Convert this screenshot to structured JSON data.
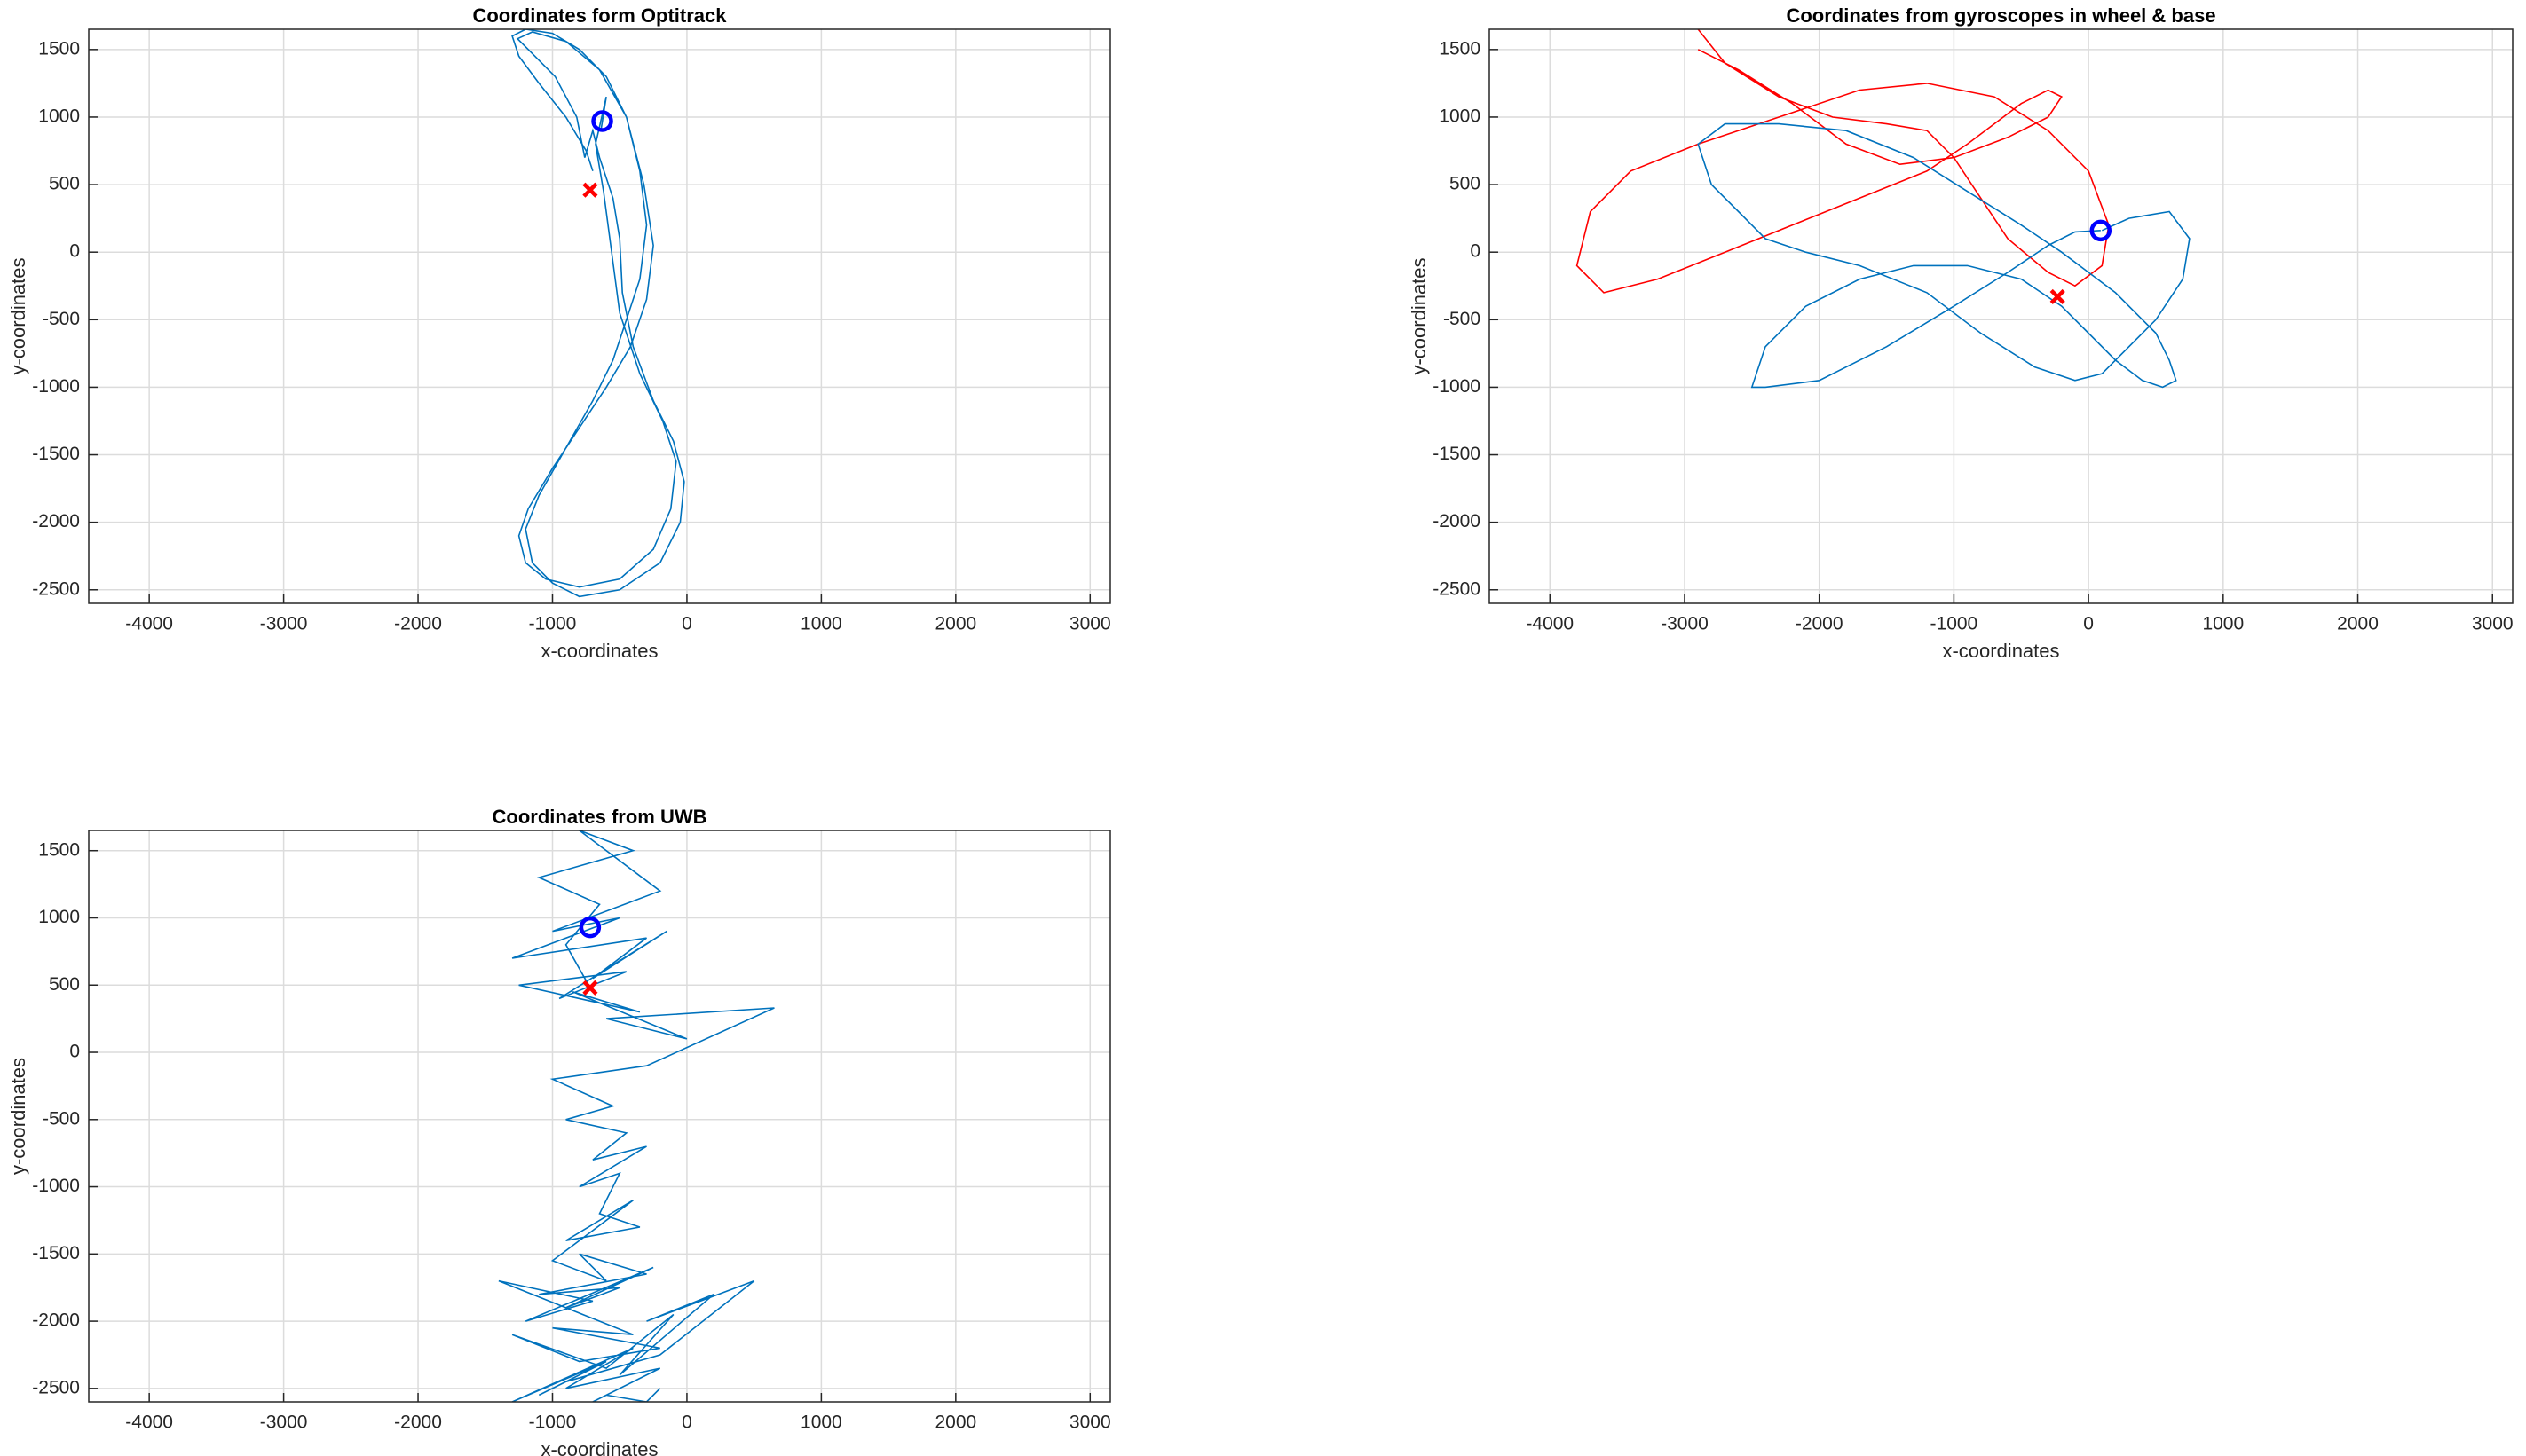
{
  "chart_data": [
    {
      "type": "line",
      "title": "Coordinates form Optitrack",
      "xlabel": "x-coordinates",
      "ylabel": "y-coordinates",
      "xlim": [
        -4450,
        3150
      ],
      "ylim": [
        -2600,
        1650
      ],
      "xticks": [
        -4000,
        -3000,
        -2000,
        -1000,
        0,
        1000,
        2000,
        3000
      ],
      "yticks": [
        -2500,
        -2000,
        -1500,
        -1000,
        -500,
        0,
        500,
        1000,
        1500
      ],
      "grid": true,
      "series": [
        {
          "color": "#0072bd",
          "marker": "none",
          "x": [
            -700,
            -750,
            -900,
            -1100,
            -1250,
            -1300,
            -1200,
            -1000,
            -800,
            -600,
            -450,
            -350,
            -300,
            -350,
            -450,
            -550,
            -700,
            -900,
            -1100,
            -1200,
            -1150,
            -1000,
            -800,
            -500,
            -200,
            -50,
            -20,
            -100,
            -250,
            -400,
            -480,
            -500,
            -550,
            -650,
            -700,
            -760,
            -820,
            -980,
            -1180,
            -1260,
            -1150,
            -900,
            -650,
            -450,
            -320,
            -250,
            -300,
            -420,
            -600,
            -800,
            -1000,
            -1180,
            -1250,
            -1200,
            -1050,
            -800,
            -500,
            -250,
            -120,
            -80,
            -180,
            -350,
            -500,
            -560,
            -620,
            -680,
            -600,
            -640
          ],
          "y": [
            600,
            750,
            1000,
            1250,
            1450,
            1600,
            1650,
            1620,
            1500,
            1300,
            1000,
            600,
            200,
            -200,
            -500,
            -800,
            -1100,
            -1450,
            -1800,
            -2050,
            -2300,
            -2450,
            -2550,
            -2500,
            -2300,
            -2000,
            -1700,
            -1400,
            -1100,
            -700,
            -300,
            100,
            400,
            700,
            900,
            700,
            1000,
            1300,
            1500,
            1580,
            1630,
            1560,
            1350,
            1000,
            500,
            50,
            -350,
            -700,
            -1000,
            -1300,
            -1600,
            -1900,
            -2100,
            -2300,
            -2420,
            -2480,
            -2420,
            -2200,
            -1900,
            -1550,
            -1250,
            -900,
            -450,
            0,
            450,
            800,
            1150,
            900
          ]
        },
        {
          "color": "#0000ff",
          "marker": "o",
          "x": [
            -630
          ],
          "y": [
            970
          ]
        },
        {
          "color": "#ff0000",
          "marker": "x",
          "x": [
            -720
          ],
          "y": [
            460
          ]
        }
      ]
    },
    {
      "type": "line",
      "title": "Coordinates from gyroscopes in wheel & base",
      "xlabel": "x-coordinates",
      "ylabel": "y-coordinates",
      "xlim": [
        -4450,
        3150
      ],
      "ylim": [
        -2600,
        1650
      ],
      "xticks": [
        -4000,
        -3000,
        -2000,
        -1000,
        0,
        1000,
        2000,
        3000
      ],
      "yticks": [
        -2500,
        -2000,
        -1500,
        -1000,
        -500,
        0,
        500,
        1000,
        1500
      ],
      "grid": true,
      "series": [
        {
          "color": "#ff0000",
          "marker": "none",
          "x": [
            -2900,
            -2700,
            -2300,
            -1900,
            -1500,
            -1200,
            -1000,
            -800,
            -600,
            -300,
            -100,
            100,
            150,
            0,
            -300,
            -700,
            -1200,
            -1700,
            -2300,
            -2900,
            -3400,
            -3700,
            -3800,
            -3600,
            -3200,
            -2700,
            -2200,
            -1700,
            -1200,
            -900,
            -700,
            -500,
            -300,
            -200,
            -300,
            -600,
            -1000,
            -1400,
            -1800,
            -2200,
            -2600,
            -2900
          ],
          "y": [
            1650,
            1400,
            1150,
            1000,
            950,
            900,
            700,
            400,
            100,
            -150,
            -250,
            -100,
            200,
            600,
            900,
            1150,
            1250,
            1200,
            1000,
            800,
            600,
            300,
            -100,
            -300,
            -200,
            0,
            200,
            400,
            600,
            800,
            950,
            1100,
            1200,
            1150,
            1000,
            850,
            700,
            650,
            800,
            1100,
            1350,
            1500
          ]
        },
        {
          "color": "#0072bd",
          "marker": "none",
          "x": [
            100,
            300,
            600,
            750,
            700,
            500,
            300,
            100,
            -100,
            -400,
            -800,
            -1200,
            -1700,
            -2100,
            -2400,
            -2600,
            -2800,
            -2900,
            -2700,
            -2300,
            -1800,
            -1300,
            -900,
            -500,
            -200,
            0,
            200,
            350,
            500,
            600,
            650,
            550,
            400,
            200,
            0,
            -200,
            -500,
            -900,
            -1300,
            -1700,
            -2100,
            -2400,
            -2500,
            -2400,
            -2000,
            -1500,
            -1000,
            -600,
            -300,
            -100,
            90
          ],
          "y": [
            160,
            250,
            300,
            100,
            -200,
            -500,
            -700,
            -900,
            -950,
            -850,
            -600,
            -300,
            -100,
            0,
            100,
            300,
            500,
            800,
            950,
            950,
            900,
            700,
            450,
            200,
            0,
            -150,
            -300,
            -450,
            -600,
            -800,
            -950,
            -1000,
            -950,
            -800,
            -600,
            -400,
            -200,
            -100,
            -100,
            -200,
            -400,
            -700,
            -1000,
            -1000,
            -950,
            -700,
            -400,
            -150,
            50,
            150,
            160
          ]
        },
        {
          "color": "#0000ff",
          "marker": "o",
          "x": [
            90
          ],
          "y": [
            160
          ]
        },
        {
          "color": "#ff0000",
          "marker": "x",
          "x": [
            -230
          ],
          "y": [
            -330
          ]
        }
      ]
    },
    {
      "type": "line",
      "title": "Coordinates from UWB",
      "xlabel": "x-coordinates",
      "ylabel": "y-coordinates",
      "xlim": [
        -4450,
        3150
      ],
      "ylim": [
        -2600,
        1650
      ],
      "xticks": [
        -4000,
        -3000,
        -2000,
        -1000,
        0,
        1000,
        2000,
        3000
      ],
      "yticks": [
        -2500,
        -2000,
        -1500,
        -1000,
        -500,
        0,
        500,
        1000,
        1500
      ],
      "grid": true,
      "series": [
        {
          "color": "#0072bd",
          "marker": "none",
          "x": [
            -720,
            -900,
            -650,
            -1100,
            -400,
            -800,
            -200,
            -1000,
            -500,
            -1300,
            -300,
            -700,
            -150,
            -950,
            -450,
            -1250,
            -350,
            -850,
            0,
            -600,
            650,
            -300,
            -1000,
            -550,
            -900,
            -450,
            -700,
            -300,
            -800,
            -500,
            -650,
            -350,
            -900,
            -400,
            -1000,
            -600,
            -800,
            -300,
            -1100,
            -500,
            -900,
            -250,
            -1200,
            -700,
            -1400,
            -400,
            -1000,
            -200,
            -800,
            -1300,
            -600,
            -100,
            -500,
            200,
            -300,
            500,
            -200,
            -900,
            -1100,
            -600,
            -1300,
            -400,
            -900,
            -200,
            -700,
            -400,
            -600,
            -300,
            -200
          ],
          "y": [
            480,
            800,
            1100,
            1300,
            1500,
            1650,
            1200,
            900,
            1000,
            700,
            850,
            550,
            900,
            400,
            600,
            500,
            300,
            450,
            100,
            250,
            330,
            -100,
            -200,
            -400,
            -500,
            -600,
            -800,
            -700,
            -1000,
            -900,
            -1200,
            -1300,
            -1400,
            -1100,
            -1550,
            -1700,
            -1500,
            -1650,
            -1800,
            -1750,
            -1900,
            -1600,
            -2000,
            -1850,
            -1700,
            -2100,
            -2050,
            -2200,
            -2300,
            -2100,
            -2350,
            -1950,
            -2400,
            -1800,
            -2000,
            -1700,
            -2250,
            -2450,
            -2550,
            -2300,
            -2600,
            -2200,
            -2500,
            -2350,
            -2600,
            -2450,
            -2550,
            -2600,
            -2500
          ]
        },
        {
          "color": "#0000ff",
          "marker": "o",
          "x": [
            -720
          ],
          "y": [
            930
          ]
        },
        {
          "color": "#ff0000",
          "marker": "x",
          "x": [
            -720
          ],
          "y": [
            480
          ]
        }
      ]
    }
  ]
}
